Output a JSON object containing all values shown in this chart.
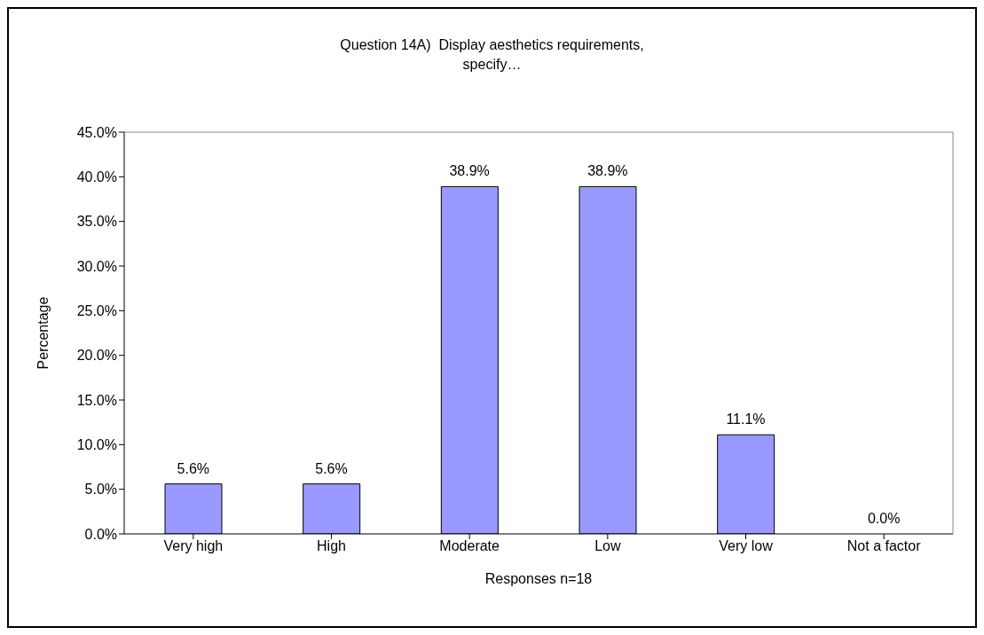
{
  "chart_data": {
    "type": "bar",
    "title": "Question 14A)  Display aesthetics requirements, specify…",
    "xlabel": "Responses n=18",
    "ylabel": "Percentage",
    "categories": [
      "Very high",
      "High",
      "Moderate",
      "Low",
      "Very low",
      "Not a factor"
    ],
    "values": [
      5.6,
      5.6,
      38.9,
      38.9,
      11.1,
      0.0
    ],
    "value_labels": [
      "5.6%",
      "5.6%",
      "38.9%",
      "38.9%",
      "11.1%",
      "0.0%"
    ],
    "color": "#9999ff",
    "ylim": [
      0,
      45
    ],
    "yticks": [
      {
        "value": 0,
        "label": "0.0%"
      },
      {
        "value": 5,
        "label": "5.0%"
      },
      {
        "value": 10,
        "label": "10.0%"
      },
      {
        "value": 15,
        "label": "15.0%"
      },
      {
        "value": 20,
        "label": "20.0%"
      },
      {
        "value": 25,
        "label": "25.0%"
      },
      {
        "value": 30,
        "label": "30.0%"
      },
      {
        "value": 35,
        "label": "35.0%"
      },
      {
        "value": 40,
        "label": "40.0%"
      },
      {
        "value": 45,
        "label": "45.0%"
      }
    ],
    "grid": false
  }
}
